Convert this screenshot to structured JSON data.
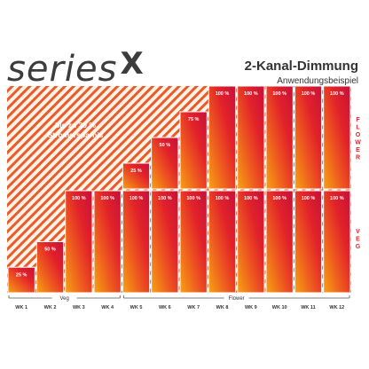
{
  "brand": {
    "name": "series",
    "mark": "X"
  },
  "header": {
    "title": "2-Kanal-Dimmung",
    "subtitle": "Anwendungsbeispiel"
  },
  "annotation": {
    "savings_line1": "bis zu 30 %",
    "savings_line2": "Stromersparnis"
  },
  "side_labels": {
    "flower": "FLOWER",
    "veg": "VEG"
  },
  "phases": [
    {
      "label": "Veg"
    },
    {
      "label": "Flower"
    }
  ],
  "colors": {
    "hatch": "#e8452a",
    "hatch_bg": "#fde2c0",
    "orange": "#f29200",
    "red": "#e2232a",
    "crimson": "#c8102e",
    "text_dark": "#333333"
  },
  "chart_data": {
    "type": "bar",
    "categories": [
      "WK 1",
      "WK 2",
      "WK 3",
      "WK 4",
      "WK 5",
      "WK 6",
      "WK 7",
      "WK 8",
      "WK 9",
      "WK 10",
      "WK 11",
      "WK 12"
    ],
    "series": [
      {
        "name": "VEG",
        "values": [
          25,
          50,
          100,
          100,
          100,
          100,
          100,
          100,
          100,
          100,
          100,
          100
        ]
      },
      {
        "name": "FLOWER",
        "values": [
          0,
          0,
          0,
          0,
          25,
          50,
          75,
          100,
          100,
          100,
          100,
          100
        ]
      }
    ],
    "unit": "%",
    "ylim": [
      0,
      100
    ],
    "legend": "right"
  }
}
